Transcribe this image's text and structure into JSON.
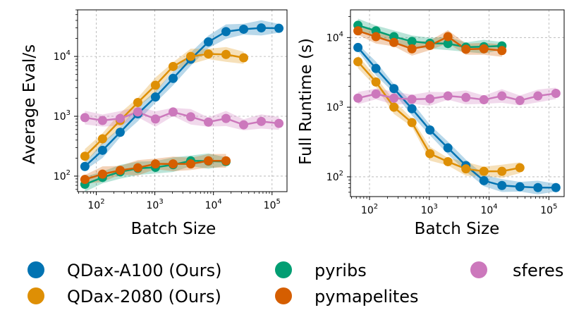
{
  "chart_data": [
    {
      "type": "line",
      "xscale": "log",
      "yscale": "log",
      "xlabel": "Batch Size",
      "ylabel": "Average Eval/s",
      "xlim": [
        48,
        180000
      ],
      "ylim": [
        55,
        60000
      ],
      "x_ticks": [
        {
          "value": 100,
          "base": "10",
          "exp": "2"
        },
        {
          "value": 1000,
          "base": "10",
          "exp": "3"
        },
        {
          "value": 10000,
          "base": "10",
          "exp": "4"
        },
        {
          "value": 100000,
          "base": "10",
          "exp": "5"
        }
      ],
      "y_ticks": [
        {
          "value": 100,
          "base": "10",
          "exp": "2"
        },
        {
          "value": 1000,
          "base": "10",
          "exp": "3"
        },
        {
          "value": 10000,
          "base": "10",
          "exp": "4"
        }
      ],
      "grid": true,
      "series": [
        {
          "name": "QDax-A100 (Ours)",
          "color": "#0173b2",
          "x": [
            64,
            128,
            256,
            512,
            1024,
            2048,
            4096,
            8192,
            16384,
            32768,
            65536,
            131072
          ],
          "y": [
            145,
            270,
            540,
            1100,
            2100,
            4300,
            9000,
            17500,
            26000,
            28500,
            30000,
            29500
          ]
        },
        {
          "name": "QDax-2080 (Ours)",
          "color": "#de8f05",
          "x": [
            64,
            128,
            256,
            512,
            1024,
            2048,
            4096,
            8192,
            16384,
            32768
          ],
          "y": [
            215,
            420,
            850,
            1700,
            3300,
            6800,
            10000,
            11000,
            10800,
            9500
          ]
        },
        {
          "name": "pyribs",
          "color": "#029e73",
          "x": [
            64,
            128,
            256,
            512,
            1024,
            2048,
            4096,
            8192,
            16384
          ],
          "y": [
            73,
            95,
            118,
            135,
            140,
            155,
            180,
            178,
            175
          ]
        },
        {
          "name": "pymapelites",
          "color": "#d55e00",
          "x": [
            64,
            128,
            256,
            512,
            1024,
            2048,
            4096,
            8192,
            16384
          ],
          "y": [
            88,
            108,
            125,
            138,
            160,
            160,
            160,
            180,
            180
          ]
        },
        {
          "name": "sferes",
          "color": "#cc78bc",
          "x": [
            64,
            128,
            256,
            512,
            1024,
            2048,
            4096,
            8192,
            16384,
            32768,
            65536,
            131072
          ],
          "y": [
            950,
            850,
            920,
            1180,
            900,
            1180,
            980,
            800,
            920,
            720,
            820,
            760
          ]
        }
      ]
    },
    {
      "type": "line",
      "xscale": "log",
      "yscale": "log",
      "xlabel": "Batch Size",
      "ylabel": "Full Runtime (s)",
      "xlim": [
        48,
        180000
      ],
      "ylim": [
        52,
        25000
      ],
      "x_ticks": [
        {
          "value": 100,
          "base": "10",
          "exp": "2"
        },
        {
          "value": 1000,
          "base": "10",
          "exp": "3"
        },
        {
          "value": 10000,
          "base": "10",
          "exp": "4"
        },
        {
          "value": 100000,
          "base": "10",
          "exp": "5"
        }
      ],
      "y_ticks": [
        {
          "value": 100,
          "base": "10",
          "exp": "2"
        },
        {
          "value": 1000,
          "base": "10",
          "exp": "3"
        },
        {
          "value": 10000,
          "base": "10",
          "exp": "4"
        }
      ],
      "grid": true,
      "series": [
        {
          "name": "QDax-A100 (Ours)",
          "color": "#0173b2",
          "x": [
            64,
            128,
            256,
            512,
            1024,
            2048,
            4096,
            8192,
            16384,
            32768,
            65536,
            131072
          ],
          "y": [
            7200,
            3600,
            1850,
            950,
            470,
            260,
            145,
            88,
            75,
            72,
            70,
            70
          ]
        },
        {
          "name": "QDax-2080 (Ours)",
          "color": "#de8f05",
          "x": [
            64,
            128,
            256,
            512,
            1024,
            2048,
            4096,
            8192,
            16384,
            32768
          ],
          "y": [
            4500,
            2300,
            1000,
            600,
            215,
            165,
            130,
            120,
            120,
            135
          ]
        },
        {
          "name": "pyribs",
          "color": "#029e73",
          "x": [
            64,
            128,
            256,
            512,
            1024,
            2048,
            4096,
            8192,
            16384
          ],
          "y": [
            15000,
            12500,
            10300,
            8800,
            8300,
            8200,
            7300,
            7400,
            7600
          ]
        },
        {
          "name": "pymapelites",
          "color": "#d55e00",
          "x": [
            64,
            128,
            256,
            512,
            1024,
            2048,
            4096,
            8192,
            16384
          ],
          "y": [
            12500,
            10300,
            8500,
            6900,
            7700,
            10300,
            6800,
            6900,
            6500
          ]
        },
        {
          "name": "sferes",
          "color": "#cc78bc",
          "x": [
            64,
            128,
            256,
            512,
            1024,
            2048,
            4096,
            8192,
            16384,
            32768,
            65536,
            131072
          ],
          "y": [
            1350,
            1550,
            1350,
            1300,
            1320,
            1450,
            1380,
            1280,
            1450,
            1250,
            1450,
            1580
          ]
        }
      ]
    }
  ],
  "legend": [
    {
      "label": "QDax-A100 (Ours)",
      "color": "#0173b2"
    },
    {
      "label": "pyribs",
      "color": "#029e73"
    },
    {
      "label": "sferes",
      "color": "#cc78bc"
    },
    {
      "label": "QDax-2080 (Ours)",
      "color": "#de8f05"
    },
    {
      "label": "pymapelites",
      "color": "#d55e00"
    }
  ]
}
